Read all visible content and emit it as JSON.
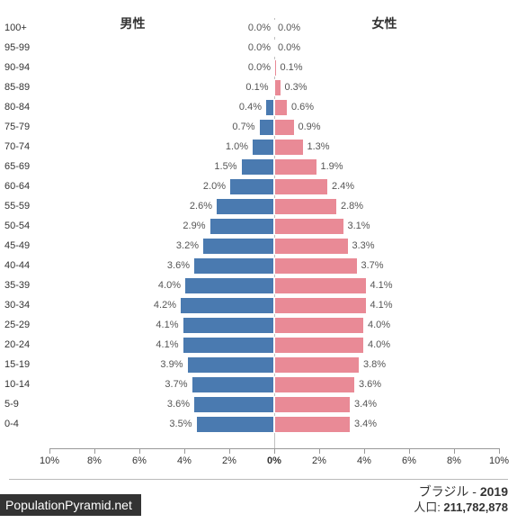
{
  "chart": {
    "type": "population-pyramid",
    "male_label": "男性",
    "female_label": "女性",
    "male_color": "#4a7ab0",
    "female_color": "#e98a96",
    "background_color": "#ffffff",
    "axis_color": "#999999",
    "center_line_color": "#c0c0c0",
    "text_color": "#333333",
    "value_text_color": "#555555",
    "font_family": "Arial",
    "label_fontsize": 11,
    "header_fontsize": 14,
    "x_domain_percent": 10,
    "x_tick_step_percent": 2,
    "x_tick_labels_left": [
      "10%",
      "8%",
      "6%",
      "4%",
      "2%"
    ],
    "x_center_label": "0%",
    "x_tick_labels_right": [
      "2%",
      "4%",
      "6%",
      "8%",
      "10%"
    ],
    "age_groups": [
      {
        "label": "100+",
        "male": 0.0,
        "female": 0.0,
        "male_txt": "0.0%",
        "female_txt": "0.0%"
      },
      {
        "label": "95-99",
        "male": 0.0,
        "female": 0.0,
        "male_txt": "0.0%",
        "female_txt": "0.0%"
      },
      {
        "label": "90-94",
        "male": 0.0,
        "female": 0.1,
        "male_txt": "0.0%",
        "female_txt": "0.1%"
      },
      {
        "label": "85-89",
        "male": 0.1,
        "female": 0.3,
        "male_txt": "0.1%",
        "female_txt": "0.3%"
      },
      {
        "label": "80-84",
        "male": 0.4,
        "female": 0.6,
        "male_txt": "0.4%",
        "female_txt": "0.6%"
      },
      {
        "label": "75-79",
        "male": 0.7,
        "female": 0.9,
        "male_txt": "0.7%",
        "female_txt": "0.9%"
      },
      {
        "label": "70-74",
        "male": 1.0,
        "female": 1.3,
        "male_txt": "1.0%",
        "female_txt": "1.3%"
      },
      {
        "label": "65-69",
        "male": 1.5,
        "female": 1.9,
        "male_txt": "1.5%",
        "female_txt": "1.9%"
      },
      {
        "label": "60-64",
        "male": 2.0,
        "female": 2.4,
        "male_txt": "2.0%",
        "female_txt": "2.4%"
      },
      {
        "label": "55-59",
        "male": 2.6,
        "female": 2.8,
        "male_txt": "2.6%",
        "female_txt": "2.8%"
      },
      {
        "label": "50-54",
        "male": 2.9,
        "female": 3.1,
        "male_txt": "2.9%",
        "female_txt": "3.1%"
      },
      {
        "label": "45-49",
        "male": 3.2,
        "female": 3.3,
        "male_txt": "3.2%",
        "female_txt": "3.3%"
      },
      {
        "label": "40-44",
        "male": 3.6,
        "female": 3.7,
        "male_txt": "3.6%",
        "female_txt": "3.7%"
      },
      {
        "label": "35-39",
        "male": 4.0,
        "female": 4.1,
        "male_txt": "4.0%",
        "female_txt": "4.1%"
      },
      {
        "label": "30-34",
        "male": 4.2,
        "female": 4.1,
        "male_txt": "4.2%",
        "female_txt": "4.1%"
      },
      {
        "label": "25-29",
        "male": 4.1,
        "female": 4.0,
        "male_txt": "4.1%",
        "female_txt": "4.0%"
      },
      {
        "label": "20-24",
        "male": 4.1,
        "female": 4.0,
        "male_txt": "4.1%",
        "female_txt": "4.0%"
      },
      {
        "label": "15-19",
        "male": 3.9,
        "female": 3.8,
        "male_txt": "3.9%",
        "female_txt": "3.8%"
      },
      {
        "label": "10-14",
        "male": 3.7,
        "female": 3.6,
        "male_txt": "3.7%",
        "female_txt": "3.6%"
      },
      {
        "label": "5-9",
        "male": 3.6,
        "female": 3.4,
        "male_txt": "3.6%",
        "female_txt": "3.4%"
      },
      {
        "label": "0-4",
        "male": 3.5,
        "female": 3.4,
        "male_txt": "3.5%",
        "female_txt": "3.4%"
      }
    ]
  },
  "footer": {
    "site": "PopulationPyramid.net",
    "country": "ブラジル",
    "year": "2019",
    "sep": " - ",
    "pop_label": "人口: ",
    "population": "211,782,878"
  }
}
